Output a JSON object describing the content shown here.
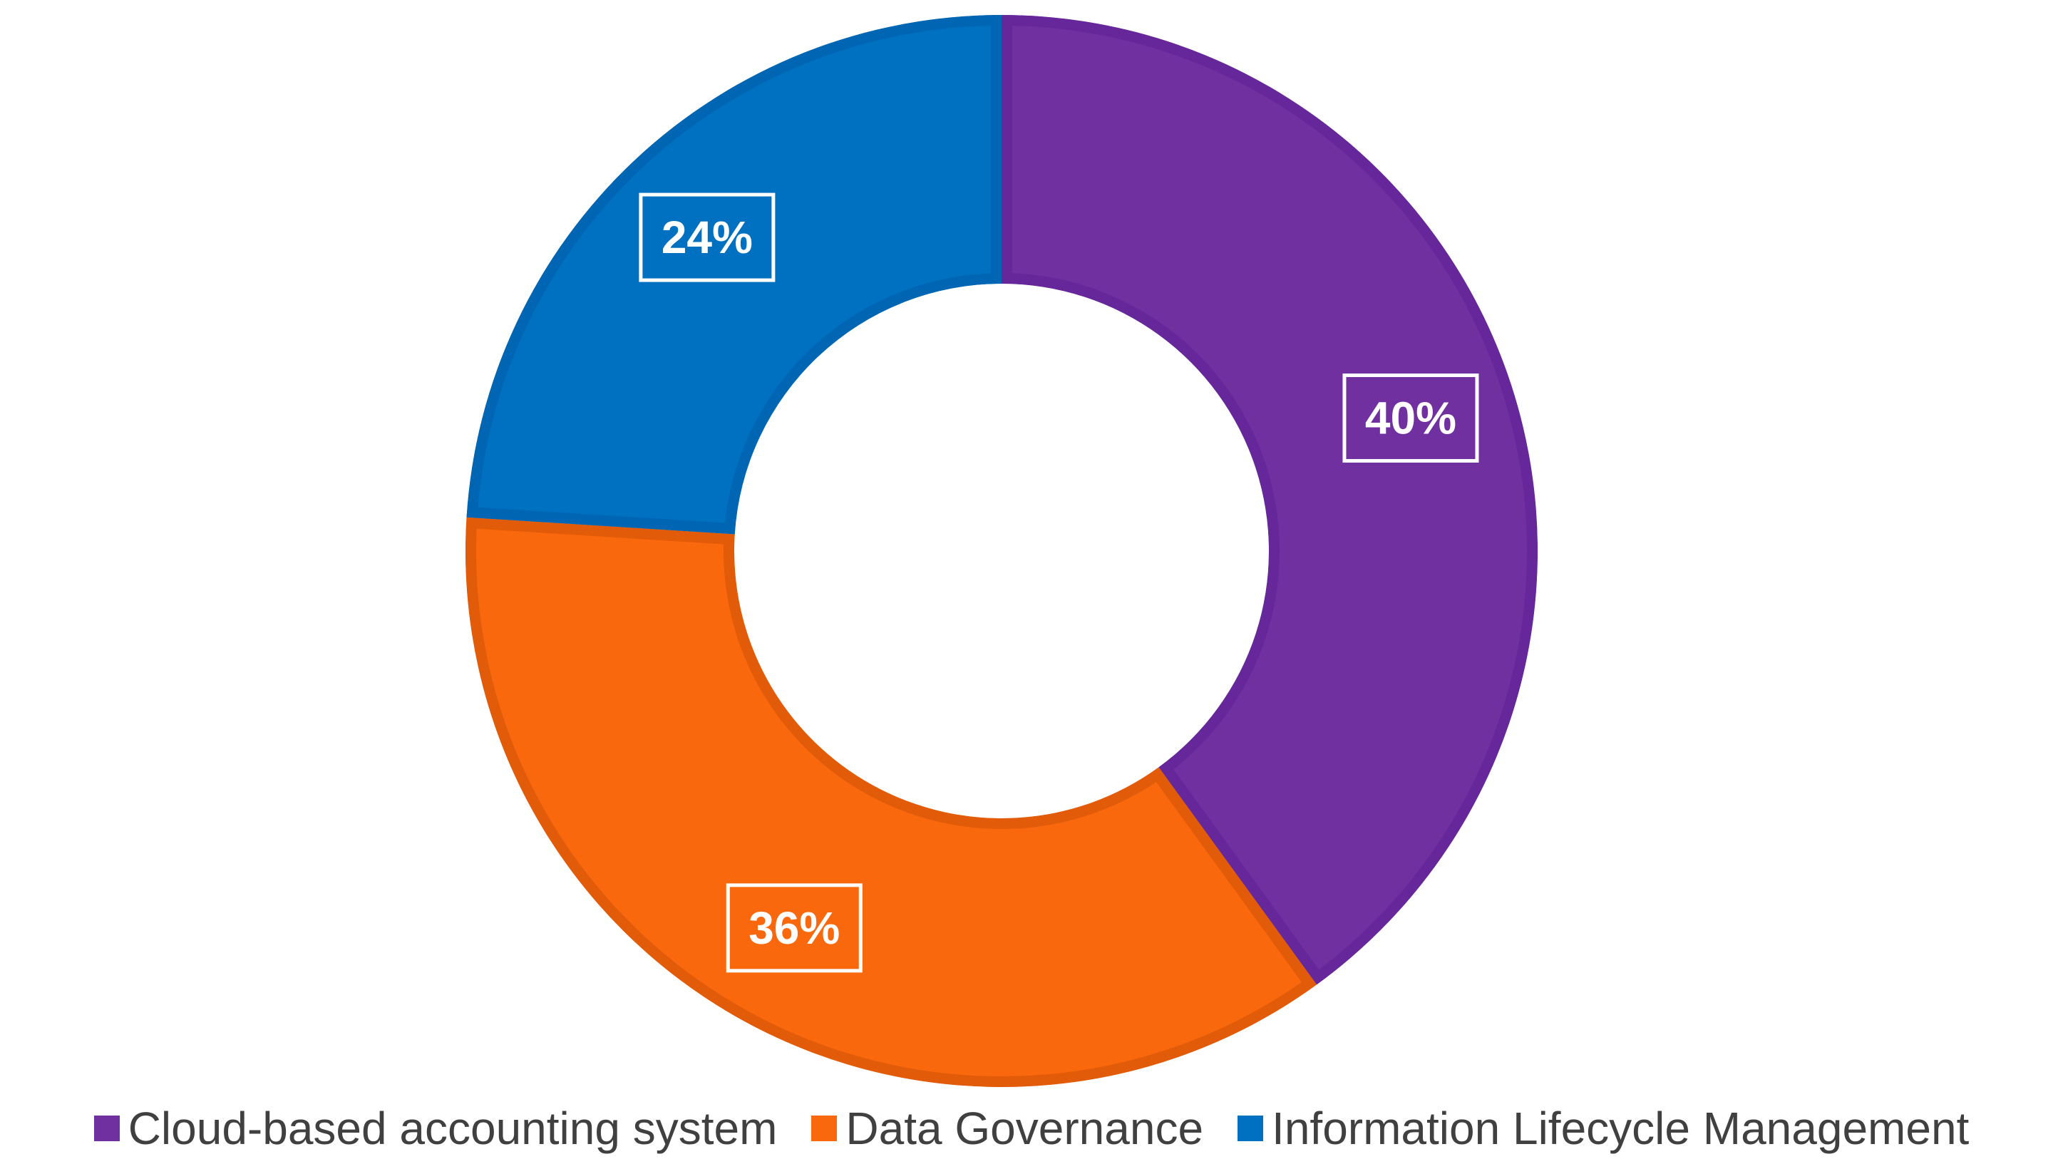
{
  "chart_data": {
    "type": "pie",
    "variant": "donut",
    "title": "",
    "legend_position": "bottom",
    "slices": [
      {
        "label": "Cloud-based accounting system",
        "value": 40,
        "data_label": "40%",
        "color": "#7030A0",
        "border_color": "#66279A"
      },
      {
        "label": "Data Governance",
        "value": 36,
        "data_label": "36%",
        "color": "#FA680E",
        "border_color": "#E25B08"
      },
      {
        "label": "Information Lifecycle Management",
        "value": 24,
        "data_label": "24%",
        "color": "#0070C0",
        "border_color": "#0066B3"
      }
    ]
  }
}
